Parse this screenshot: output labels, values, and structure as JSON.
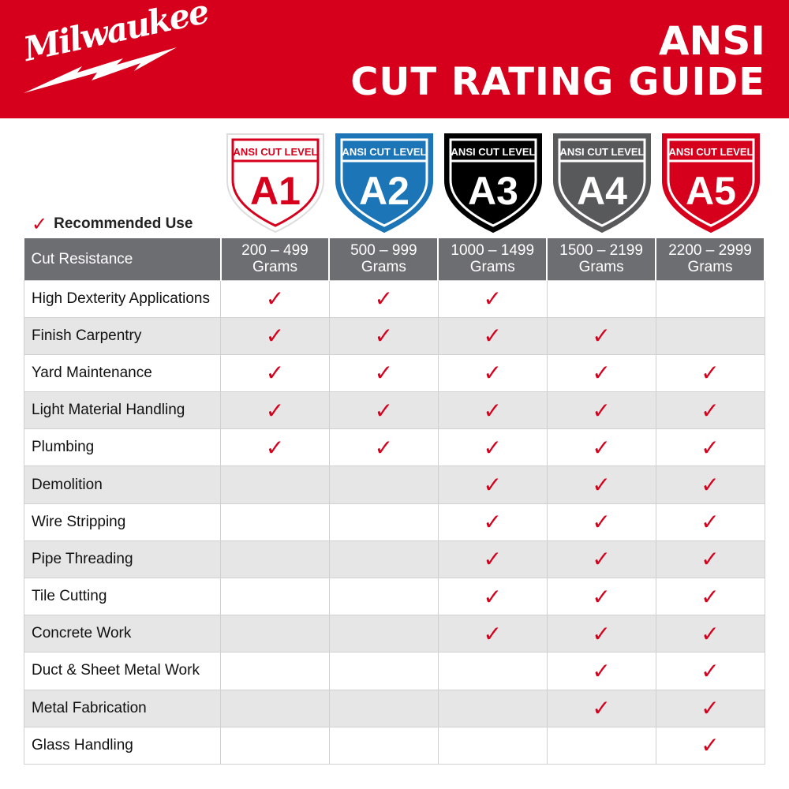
{
  "header": {
    "brand": "Milwaukee",
    "title_line1": "ANSI",
    "title_line2": "CUT RATING GUIDE",
    "color": "#d6001c"
  },
  "legend": {
    "icon": "check-icon",
    "label": "Recommended Use"
  },
  "levels": [
    {
      "band": "ANSI CUT LEVEL",
      "level": "A1",
      "range": "200 – 499",
      "unit": "Grams",
      "fill": "#ffffff",
      "fg": "#d6001c"
    },
    {
      "band": "ANSI CUT LEVEL",
      "level": "A2",
      "range": "500 – 999",
      "unit": "Grams",
      "fill": "#1b75b6",
      "fg": "#ffffff"
    },
    {
      "band": "ANSI CUT LEVEL",
      "level": "A3",
      "range": "1000 – 1499",
      "unit": "Grams",
      "fill": "#000000",
      "fg": "#ffffff"
    },
    {
      "band": "ANSI CUT LEVEL",
      "level": "A4",
      "range": "1500 – 2199",
      "unit": "Grams",
      "fill": "#58595b",
      "fg": "#ffffff"
    },
    {
      "band": "ANSI CUT LEVEL",
      "level": "A5",
      "range": "2200 – 2999",
      "unit": "Grams",
      "fill": "#d6001c",
      "fg": "#ffffff"
    }
  ],
  "table": {
    "header_label": "Cut Resistance",
    "check_glyph": "✓",
    "rows": [
      {
        "label": "High Dexterity Applications",
        "checks": [
          true,
          true,
          true,
          false,
          false
        ]
      },
      {
        "label": "Finish Carpentry",
        "checks": [
          true,
          true,
          true,
          true,
          false
        ]
      },
      {
        "label": "Yard Maintenance",
        "checks": [
          true,
          true,
          true,
          true,
          true
        ]
      },
      {
        "label": "Light Material Handling",
        "checks": [
          true,
          true,
          true,
          true,
          true
        ]
      },
      {
        "label": "Plumbing",
        "checks": [
          true,
          true,
          true,
          true,
          true
        ]
      },
      {
        "label": "Demolition",
        "checks": [
          false,
          false,
          true,
          true,
          true
        ]
      },
      {
        "label": "Wire Stripping",
        "checks": [
          false,
          false,
          true,
          true,
          true
        ]
      },
      {
        "label": "Pipe Threading",
        "checks": [
          false,
          false,
          true,
          true,
          true
        ]
      },
      {
        "label": "Tile Cutting",
        "checks": [
          false,
          false,
          true,
          true,
          true
        ]
      },
      {
        "label": "Concrete Work",
        "checks": [
          false,
          false,
          true,
          true,
          true
        ]
      },
      {
        "label": "Duct & Sheet Metal Work",
        "checks": [
          false,
          false,
          false,
          true,
          true
        ]
      },
      {
        "label": "Metal Fabrication",
        "checks": [
          false,
          false,
          false,
          true,
          true
        ]
      },
      {
        "label": "Glass Handling",
        "checks": [
          false,
          false,
          false,
          false,
          true
        ]
      }
    ]
  }
}
